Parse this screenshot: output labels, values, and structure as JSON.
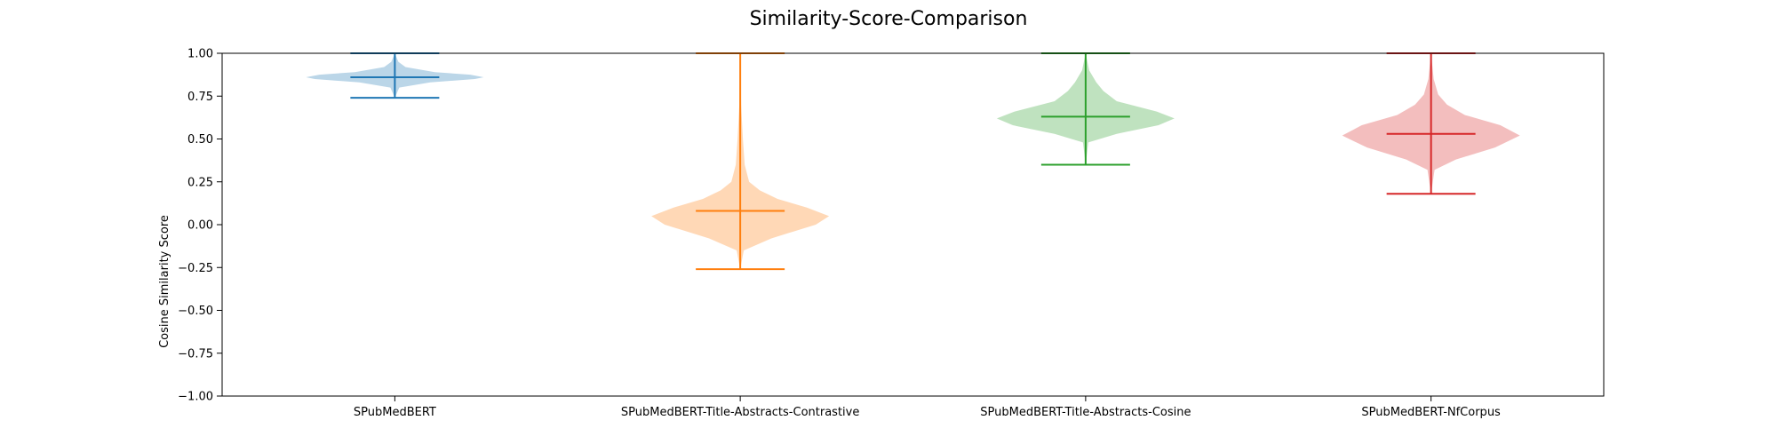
{
  "chart_data": {
    "type": "violin",
    "title": "Similarity-Score-Comparison",
    "xlabel": "",
    "ylabel": "Cosine Similarity Score",
    "ylim": [
      -1.0,
      1.0
    ],
    "yticks": [
      "−1.00",
      "−0.75",
      "−0.50",
      "−0.25",
      "0.00",
      "0.25",
      "0.50",
      "0.75",
      "1.00"
    ],
    "grid": false,
    "categories": [
      "SPubMedBERT",
      "SPubMedBERT-Title-Abstracts-Contrastive",
      "SPubMedBERT-Title-Abstracts-Cosine",
      "SPubMedBERT-NfCorpus"
    ],
    "series": [
      {
        "color": "#1f77b4",
        "min": 0.74,
        "mean": 0.86,
        "max": 1.0,
        "mode": 0.86,
        "profile": [
          [
            0.74,
            0.0
          ],
          [
            0.8,
            0.05
          ],
          [
            0.83,
            0.4
          ],
          [
            0.85,
            0.9
          ],
          [
            0.86,
            1.0
          ],
          [
            0.875,
            0.85
          ],
          [
            0.89,
            0.45
          ],
          [
            0.92,
            0.12
          ],
          [
            0.95,
            0.04
          ],
          [
            1.0,
            0.0
          ]
        ]
      },
      {
        "color": "#ff7f0e",
        "min": -0.26,
        "mean": 0.08,
        "max": 1.0,
        "mode": 0.05,
        "profile": [
          [
            -0.26,
            0.0
          ],
          [
            -0.15,
            0.04
          ],
          [
            -0.08,
            0.35
          ],
          [
            0.0,
            0.85
          ],
          [
            0.05,
            1.0
          ],
          [
            0.1,
            0.75
          ],
          [
            0.15,
            0.42
          ],
          [
            0.2,
            0.22
          ],
          [
            0.25,
            0.1
          ],
          [
            0.35,
            0.05
          ],
          [
            0.5,
            0.03
          ],
          [
            0.7,
            0.01
          ],
          [
            1.0,
            0.0
          ]
        ]
      },
      {
        "color": "#2ca02c",
        "min": 0.35,
        "mean": 0.63,
        "max": 1.0,
        "mode": 0.62,
        "profile": [
          [
            0.35,
            0.0
          ],
          [
            0.48,
            0.03
          ],
          [
            0.53,
            0.35
          ],
          [
            0.58,
            0.82
          ],
          [
            0.62,
            1.0
          ],
          [
            0.66,
            0.8
          ],
          [
            0.72,
            0.35
          ],
          [
            0.78,
            0.2
          ],
          [
            0.83,
            0.12
          ],
          [
            0.9,
            0.04
          ],
          [
            1.0,
            0.0
          ]
        ]
      },
      {
        "color": "#d62728",
        "min": 0.18,
        "mean": 0.53,
        "max": 1.0,
        "mode": 0.52,
        "profile": [
          [
            0.18,
            0.0
          ],
          [
            0.32,
            0.04
          ],
          [
            0.38,
            0.28
          ],
          [
            0.45,
            0.72
          ],
          [
            0.52,
            1.0
          ],
          [
            0.58,
            0.78
          ],
          [
            0.64,
            0.38
          ],
          [
            0.7,
            0.18
          ],
          [
            0.76,
            0.08
          ],
          [
            0.85,
            0.03
          ],
          [
            1.0,
            0.0
          ]
        ]
      }
    ]
  }
}
